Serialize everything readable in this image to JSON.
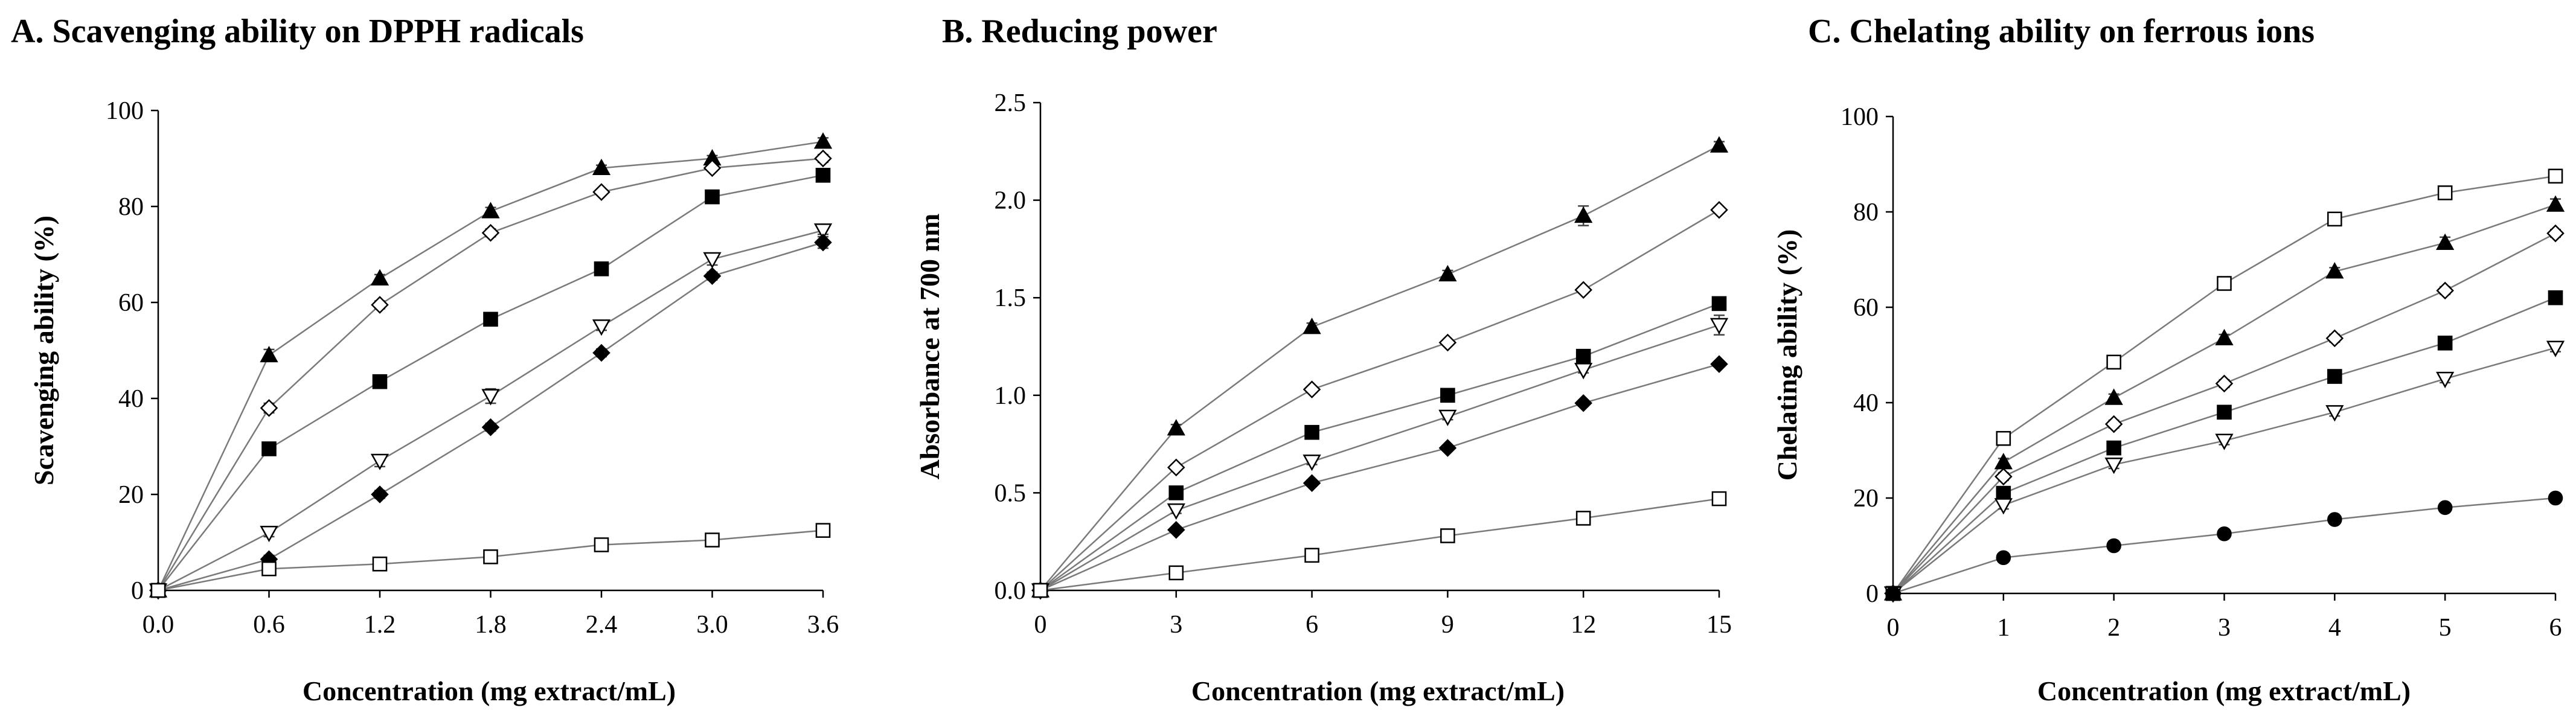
{
  "chart_data": [
    {
      "type": "line",
      "title": "A. Scavenging ability on DPPH radicals",
      "xlabel": "Concentration (mg extract/mL)",
      "ylabel": "Scavenging ability (%)",
      "x_ticks": [
        "0.0",
        "0.6",
        "1.2",
        "1.8",
        "2.4",
        "3.0",
        "3.6"
      ],
      "y_ticks": [
        "0",
        "20",
        "40",
        "60",
        "80",
        "100"
      ],
      "xlim": [
        0,
        3.6
      ],
      "ylim": [
        0,
        100
      ],
      "x": [
        0,
        0.6,
        1.2,
        1.8,
        2.4,
        3.0,
        3.6
      ],
      "series": [
        {
          "marker": "triangle-filled",
          "values": [
            0,
            49,
            65,
            79,
            88,
            90,
            93.5
          ],
          "err": [
            0,
            1.2,
            0.8,
            0.8,
            0.6,
            0.6,
            0.8
          ]
        },
        {
          "marker": "diamond-open",
          "values": [
            0,
            38,
            59.5,
            74.5,
            83,
            88,
            90
          ],
          "err": [
            0,
            1,
            0.8,
            0.8,
            0.6,
            0.6,
            0.8
          ]
        },
        {
          "marker": "square-filled",
          "values": [
            0,
            29.5,
            43.5,
            56.5,
            67,
            82,
            86.5
          ],
          "err": [
            0,
            0.8,
            0.8,
            1.2,
            0.8,
            0.6,
            0.8
          ]
        },
        {
          "marker": "triangle-down-open",
          "values": [
            0,
            12,
            27,
            40.5,
            55,
            69,
            75
          ],
          "err": [
            0,
            0.8,
            1.2,
            1.5,
            0.8,
            1.2,
            0.8
          ]
        },
        {
          "marker": "diamond-filled",
          "values": [
            0,
            6.5,
            20,
            34,
            49.5,
            65.5,
            72.5
          ],
          "err": [
            0,
            0.8,
            0.8,
            0.8,
            0.8,
            0.8,
            1.2
          ]
        },
        {
          "marker": "square-open",
          "values": [
            0,
            4.5,
            5.5,
            7,
            9.5,
            10.5,
            12.5
          ],
          "err": [
            0,
            0.5,
            0.5,
            0.5,
            0.5,
            0.5,
            0.5
          ]
        }
      ]
    },
    {
      "type": "line",
      "title": "B. Reducing power",
      "xlabel": "Concentration (mg extract/mL)",
      "ylabel": "Absorbance at 700 nm",
      "x_ticks": [
        "0",
        "3",
        "6",
        "9",
        "12",
        "15"
      ],
      "y_ticks": [
        "0.0",
        "0.5",
        "1.0",
        "1.5",
        "2.0",
        "2.5"
      ],
      "xlim": [
        0,
        15
      ],
      "ylim": [
        0,
        2.5
      ],
      "x": [
        0,
        3,
        6,
        9,
        12,
        15
      ],
      "series": [
        {
          "marker": "triangle-filled",
          "values": [
            0,
            0.83,
            1.35,
            1.62,
            1.92,
            2.28
          ],
          "err": [
            0,
            0.02,
            0.02,
            0.02,
            0.05,
            0.02
          ]
        },
        {
          "marker": "diamond-open",
          "values": [
            0,
            0.63,
            1.03,
            1.27,
            1.54,
            1.95
          ],
          "err": [
            0,
            0.015,
            0.015,
            0.015,
            0.015,
            0.015
          ]
        },
        {
          "marker": "square-filled",
          "values": [
            0,
            0.5,
            0.81,
            1.0,
            1.2,
            1.47
          ],
          "err": [
            0,
            0.015,
            0.015,
            0.015,
            0.015,
            0.02
          ]
        },
        {
          "marker": "triangle-down-open",
          "values": [
            0,
            0.41,
            0.66,
            0.89,
            1.13,
            1.36
          ],
          "err": [
            0,
            0.015,
            0.015,
            0.015,
            0.015,
            0.05
          ]
        },
        {
          "marker": "diamond-filled",
          "values": [
            0,
            0.31,
            0.55,
            0.73,
            0.96,
            1.16
          ],
          "err": [
            0,
            0.015,
            0.015,
            0.015,
            0.015,
            0.015
          ]
        },
        {
          "marker": "square-open",
          "values": [
            0,
            0.09,
            0.18,
            0.28,
            0.37,
            0.47
          ],
          "err": [
            0,
            0.01,
            0.01,
            0.01,
            0.01,
            0.01
          ]
        }
      ]
    },
    {
      "type": "line",
      "title": "C. Chelating ability on ferrous ions",
      "xlabel": "Concentration (mg extract/mL)",
      "ylabel": "Chelating ability (%)",
      "x_ticks": [
        "0",
        "1",
        "2",
        "3",
        "4",
        "5",
        "6"
      ],
      "y_ticks": [
        "0",
        "20",
        "40",
        "60",
        "80",
        "100"
      ],
      "xlim": [
        0,
        6
      ],
      "ylim": [
        0,
        100
      ],
      "x": [
        0,
        1,
        2,
        3,
        4,
        5,
        6
      ],
      "series": [
        {
          "marker": "square-open",
          "values": [
            0,
            32.5,
            48.5,
            65,
            78.5,
            84,
            87.5
          ],
          "err": [
            0,
            0.8,
            0.8,
            0.8,
            0.8,
            0.8,
            0.8
          ]
        },
        {
          "marker": "triangle-filled",
          "values": [
            0,
            27.5,
            41,
            53.5,
            67.5,
            73.5,
            81.5
          ],
          "err": [
            0,
            0.8,
            0.8,
            0.8,
            0.8,
            1.2,
            1.2
          ]
        },
        {
          "marker": "diamond-open",
          "values": [
            0,
            24.5,
            35.5,
            44,
            53.5,
            63.5,
            75.5
          ],
          "err": [
            0,
            0.8,
            0.8,
            0.8,
            0.8,
            0.8,
            0.8
          ]
        },
        {
          "marker": "square-filled",
          "values": [
            0,
            21,
            30.5,
            38,
            45.5,
            52.5,
            62
          ],
          "err": [
            0,
            0.8,
            0.8,
            0.8,
            0.8,
            0.8,
            0.8
          ]
        },
        {
          "marker": "triangle-down-open",
          "values": [
            0,
            18.5,
            27,
            32,
            38,
            45,
            51.5
          ],
          "err": [
            0,
            0.8,
            0.8,
            0.8,
            0.8,
            0.8,
            0.8
          ]
        },
        {
          "marker": "circle-filled",
          "values": [
            0,
            7.5,
            10,
            12.5,
            15.5,
            18,
            20
          ],
          "err": [
            0,
            0.5,
            0.5,
            0.5,
            0.5,
            0.5,
            0.5
          ]
        }
      ]
    }
  ]
}
